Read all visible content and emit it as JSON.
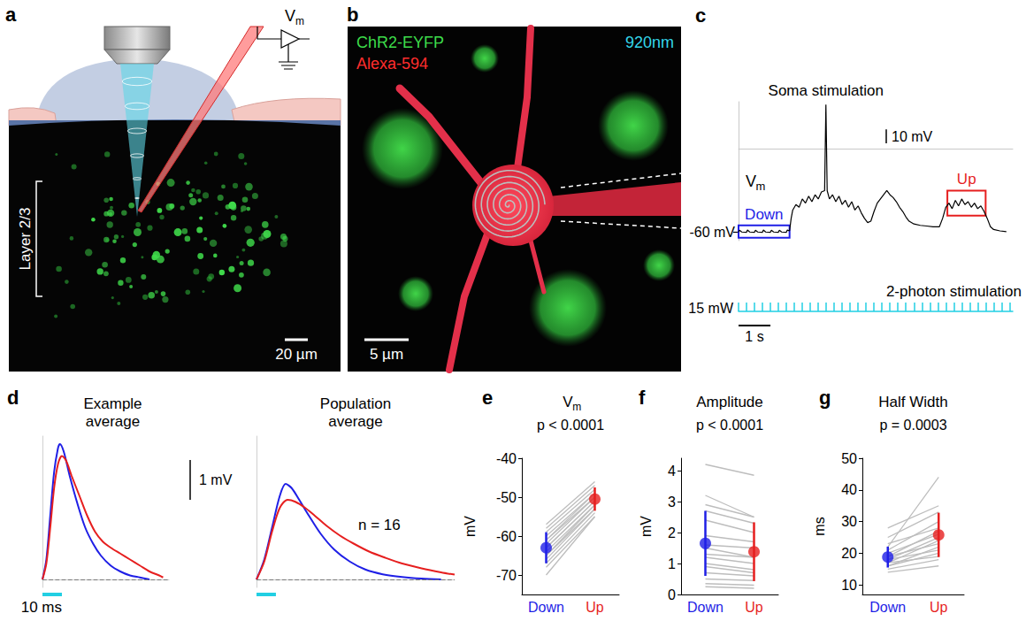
{
  "panels": [
    {
      "letter": "a",
      "labels": {
        "recording": {
          "text": "V",
          "subscript": "m"
        },
        "layer": "Layer 2/3",
        "scale_bar": "20 µm"
      }
    },
    {
      "letter": "b",
      "labels": [
        {
          "text": "ChR2-EYFP",
          "color": "#3ddc4a"
        },
        {
          "text": "Alexa-594",
          "color": "#ff2d2d"
        },
        {
          "text": "920nm",
          "color": "#34d6ea"
        }
      ],
      "scale_bar": "5 µm"
    }
  ],
  "chart_data": [
    {
      "panel": "c",
      "type": "line",
      "title": {
        "text": "V",
        "subscript": "m"
      },
      "color": "#000000",
      "x": [
        0,
        0.03,
        0.1,
        0.25,
        0.28,
        0.35,
        0.5,
        0.53,
        0.6,
        0.75,
        0.78,
        0.85,
        1.0,
        1.03,
        1.1,
        1.25,
        1.28,
        1.35,
        1.5,
        1.53,
        1.6,
        1.65,
        1.7,
        1.8,
        1.9,
        2.0,
        2.1,
        2.2,
        2.3,
        2.4,
        2.5,
        2.6,
        2.7,
        2.74,
        2.78,
        2.85,
        2.95,
        3.05,
        3.15,
        3.25,
        3.35,
        3.45,
        3.55,
        3.65,
        3.75,
        3.85,
        3.95,
        4.05,
        4.15,
        4.25,
        4.35,
        4.45,
        4.55,
        4.65,
        4.75,
        4.85,
        4.95,
        5.05,
        5.15,
        5.25,
        5.35,
        5.5,
        5.7,
        5.9,
        6.1,
        6.3,
        6.4,
        6.5,
        6.6,
        6.7,
        6.8,
        6.9,
        7.0,
        7.1,
        7.2,
        7.3,
        7.4,
        7.5,
        7.6,
        7.7,
        7.8,
        7.9,
        8.0,
        8.2,
        8.4
      ],
      "values": [
        -60,
        -58.5,
        -59.8,
        -60,
        -58.4,
        -59.8,
        -60,
        -58.5,
        -59.8,
        -60,
        -58.4,
        -59.8,
        -60,
        -58.5,
        -59.8,
        -60,
        -58.5,
        -59.8,
        -60,
        -58.4,
        -59,
        -50,
        -44,
        -40,
        -42,
        -36,
        -39,
        -34,
        -38,
        -33,
        -36,
        -31,
        -30,
        32,
        -30,
        -36,
        -33,
        -38,
        -34,
        -40,
        -37,
        -42,
        -38,
        -44,
        -41,
        -46,
        -50,
        -53,
        -52,
        -45,
        -39,
        -36,
        -33,
        -30,
        -33,
        -35,
        -38,
        -42,
        -45,
        -49,
        -52,
        -54,
        -55,
        -55.5,
        -56,
        -56,
        -50,
        -42,
        -39,
        -43,
        -37,
        -41,
        -36,
        -40,
        -38,
        -42,
        -39,
        -43,
        -41,
        -45,
        -50,
        -56,
        -58,
        -59,
        -59.5
      ],
      "xlim": [
        0,
        8.6
      ],
      "ylim": [
        -66,
        34
      ],
      "yticks": [
        {
          "value": -60,
          "label": "-60 mV"
        }
      ],
      "tick_labels": "y",
      "grid": false,
      "annotations": [
        {
          "text": "Soma stimulation",
          "x": 2.74
        }
      ],
      "boxes": [
        {
          "label": "Down",
          "color": "#1f1fe6",
          "x": [
            0,
            1.6
          ],
          "y": [
            -64,
            -55
          ]
        },
        {
          "label": "Up",
          "color": "#e61f1f",
          "x": [
            6.55,
            7.75
          ],
          "y": [
            -48,
            -30
          ]
        }
      ],
      "stimulation": {
        "label": "2-photon stimulation",
        "power_label": "15 mW",
        "color": "#22cfe3",
        "x": [
          0,
          0.25,
          0.5,
          0.75,
          1,
          1.25,
          1.5,
          1.75,
          2,
          2.25,
          2.5,
          2.75,
          3,
          3.25,
          3.5,
          3.75,
          4,
          4.25,
          4.5,
          4.75,
          5,
          5.25,
          5.5,
          5.75,
          6,
          6.25,
          6.5,
          6.75,
          7,
          7.25,
          7.5,
          7.75,
          8,
          8.25,
          8.5
        ]
      },
      "scale_bars": [
        {
          "axis": "y",
          "value": 10,
          "label": "10 mV"
        },
        {
          "axis": "x",
          "value": 1,
          "label": "1 s"
        }
      ]
    },
    {
      "panel": "d",
      "type": "line",
      "title": "Example average",
      "tick_labels": false,
      "grid": false,
      "xlim": [
        0,
        65
      ],
      "ylim": [
        -0.2,
        3.6
      ],
      "series": [
        {
          "color": "#1f1fe6",
          "x": [
            0,
            2,
            4,
            6,
            8,
            9,
            11,
            14,
            18,
            22,
            26,
            30,
            35,
            40,
            45,
            50,
            55
          ],
          "values": [
            0,
            0.5,
            1.6,
            2.7,
            3.3,
            3.4,
            3.2,
            2.6,
            1.9,
            1.3,
            0.9,
            0.6,
            0.35,
            0.2,
            0.1,
            0.05,
            0
          ]
        },
        {
          "color": "#e61f1f",
          "x": [
            0,
            2,
            4,
            6,
            8,
            10,
            12,
            15,
            19,
            23,
            27,
            31,
            35,
            40,
            45,
            50,
            55,
            60,
            62
          ],
          "values": [
            0,
            0.4,
            1.3,
            2.3,
            2.9,
            3.1,
            3.0,
            2.6,
            2.1,
            1.6,
            1.2,
            0.95,
            0.8,
            0.65,
            0.5,
            0.35,
            0.2,
            0.1,
            0.05
          ]
        }
      ],
      "reference_line": {
        "value": 0,
        "line_style": "dashed"
      },
      "stimulus": {
        "x": [
          0,
          10
        ],
        "label": "10 ms",
        "color": "#22cfe3"
      },
      "scale_bars": [
        {
          "axis": "y",
          "value": 1,
          "label": "1 mV"
        }
      ]
    },
    {
      "type": "line",
      "title": "Population average",
      "tick_labels": false,
      "grid": false,
      "xlim": [
        0,
        102
      ],
      "ylim": [
        -0.2,
        3.6
      ],
      "series": [
        {
          "color": "#1f1fe6",
          "x": [
            0,
            4,
            8,
            12,
            15,
            18,
            22,
            27,
            33,
            40,
            48,
            56,
            65,
            75,
            85,
            95
          ],
          "values": [
            0,
            0.5,
            1.3,
            2.1,
            2.4,
            2.3,
            2.0,
            1.6,
            1.15,
            0.75,
            0.45,
            0.25,
            0.13,
            0.06,
            0.02,
            0
          ]
        },
        {
          "color": "#e61f1f",
          "x": [
            0,
            4,
            8,
            12,
            16,
            20,
            25,
            30,
            36,
            43,
            50,
            58,
            66,
            75,
            85,
            95,
            102
          ],
          "values": [
            0,
            0.45,
            1.2,
            1.8,
            2.0,
            1.95,
            1.8,
            1.6,
            1.35,
            1.1,
            0.9,
            0.7,
            0.55,
            0.4,
            0.28,
            0.18,
            0.12
          ]
        }
      ],
      "reference_line": {
        "value": 0,
        "line_style": "dashed"
      },
      "stimulus": {
        "x": [
          0,
          10
        ],
        "color": "#22cfe3"
      },
      "annotations": [
        {
          "text": "n = 16"
        }
      ]
    },
    {
      "panel": "e",
      "type": "paired",
      "title": {
        "text": "V",
        "subscript": "m"
      },
      "subtitle": "p < 0.0001",
      "y_label": "mV",
      "categories": [
        "Down",
        "Up"
      ],
      "colors": [
        "#1f1fe6",
        "#e61f1f"
      ],
      "color": "#bdbdbd",
      "grid": false,
      "pairs": [
        [
          -57,
          -46
        ],
        [
          -58,
          -47
        ],
        [
          -59,
          -48
        ],
        [
          -60,
          -49
        ],
        [
          -61,
          -49
        ],
        [
          -61,
          -50
        ],
        [
          -62,
          -50
        ],
        [
          -63,
          -51
        ],
        [
          -63,
          -51
        ],
        [
          -64,
          -52
        ],
        [
          -65,
          -52
        ],
        [
          -65,
          -53
        ],
        [
          -66,
          -53
        ],
        [
          -67,
          -54
        ],
        [
          -68,
          -55
        ],
        [
          -70,
          -55
        ]
      ],
      "mean": [
        -63,
        -50.5
      ],
      "sd": [
        4,
        3
      ],
      "ylim": [
        -75,
        -40
      ],
      "yticks": [
        -70,
        -60,
        -50,
        -40
      ]
    },
    {
      "panel": "f",
      "type": "paired",
      "title": "Amplitude",
      "subtitle": "p < 0.0001",
      "y_label": "mV",
      "categories": [
        "Down",
        "Up"
      ],
      "colors": [
        "#1f1fe6",
        "#e61f1f"
      ],
      "color": "#bdbdbd",
      "grid": false,
      "pairs": [
        [
          4.2,
          3.85
        ],
        [
          3.2,
          2.5
        ],
        [
          2.9,
          2.5
        ],
        [
          2.7,
          2.3
        ],
        [
          2.4,
          2.0
        ],
        [
          1.9,
          1.7
        ],
        [
          1.6,
          1.5
        ],
        [
          1.5,
          1.2
        ],
        [
          1.3,
          1.2
        ],
        [
          1.2,
          1.0
        ],
        [
          1.0,
          0.8
        ],
        [
          0.9,
          0.7
        ],
        [
          0.7,
          0.6
        ],
        [
          0.5,
          0.45
        ],
        [
          0.35,
          0.3
        ],
        [
          0.25,
          0.2
        ]
      ],
      "mean": [
        1.65,
        1.38
      ],
      "sd": [
        1.05,
        0.95
      ],
      "ylim": [
        0,
        4.4
      ],
      "yticks": [
        0,
        1,
        2,
        3,
        4
      ]
    },
    {
      "panel": "g",
      "type": "paired",
      "title": "Half Width",
      "subtitle": "p = 0.0003",
      "y_label": "ms",
      "categories": [
        "Down",
        "Up"
      ],
      "colors": [
        "#1f1fe6",
        "#e61f1f"
      ],
      "color": "#bdbdbd",
      "grid": false,
      "pairs": [
        [
          14,
          16
        ],
        [
          15,
          18
        ],
        [
          16,
          20
        ],
        [
          16,
          22
        ],
        [
          17,
          24
        ],
        [
          17,
          19
        ],
        [
          18,
          21
        ],
        [
          18,
          25
        ],
        [
          19,
          27
        ],
        [
          19,
          23
        ],
        [
          20,
          26
        ],
        [
          21,
          30
        ],
        [
          22,
          44
        ],
        [
          23,
          28
        ],
        [
          25,
          33
        ],
        [
          28,
          35
        ]
      ],
      "mean": [
        18.8,
        25.8
      ],
      "sd": [
        3.3,
        7
      ],
      "ylim": [
        7,
        50
      ],
      "yticks": [
        10,
        20,
        30,
        40,
        50
      ]
    }
  ]
}
